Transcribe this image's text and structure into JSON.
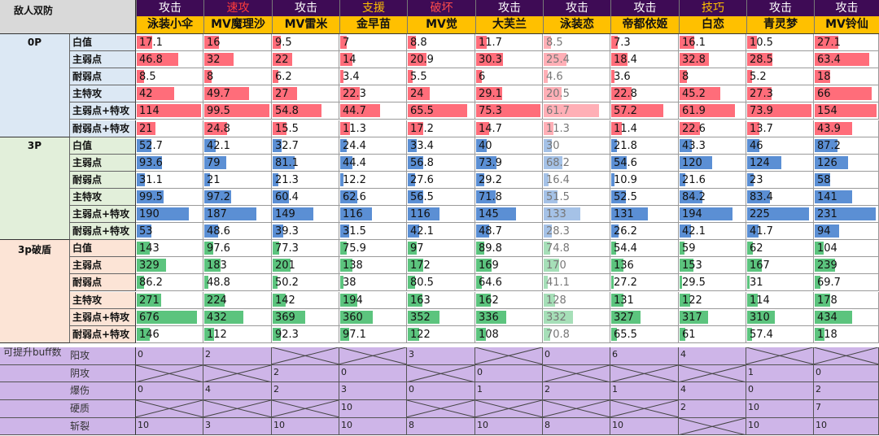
{
  "corner_label": "敌人双防",
  "roles": [
    {
      "label": "攻击",
      "color": "#ffffff"
    },
    {
      "label": "速攻",
      "color": "#ff3b3b"
    },
    {
      "label": "攻击",
      "color": "#ffffff"
    },
    {
      "label": "支援",
      "color": "#ffc000"
    },
    {
      "label": "破坏",
      "color": "#ff4c4c"
    },
    {
      "label": "攻击",
      "color": "#ffffff"
    },
    {
      "label": "攻击",
      "color": "#ffffff"
    },
    {
      "label": "攻击",
      "color": "#ffffff"
    },
    {
      "label": "技巧",
      "color": "#ffc000"
    },
    {
      "label": "攻击",
      "color": "#ffffff"
    },
    {
      "label": "攻击",
      "color": "#ffffff"
    }
  ],
  "characters": [
    "泳装小伞",
    "MV魔理沙",
    "MV雷米",
    "金早苗",
    "MV觉",
    "大芙兰",
    "泳装恋",
    "帝都依姬",
    "白恋",
    "青灵梦",
    "MV铃仙"
  ],
  "highlight": {
    "character_index": 6,
    "scale_max": {
      "0P": 72,
      "3P": 235,
      "3p破盾": 720
    }
  },
  "groups": [
    {
      "name": "0P",
      "bg": "#dce8f4",
      "bar_color": "#ff6d7a",
      "rows": [
        {
          "label": "白值",
          "values": [
            "17.1",
            "16",
            "9.5",
            "7",
            "8.8",
            "11.7",
            "8.5",
            "7.3",
            "16.1",
            "10.5",
            "27.1"
          ]
        },
        {
          "label": "主弱点",
          "values": [
            "46.8",
            "32",
            "22",
            "14",
            "20.9",
            "30.3",
            "25.4",
            "18.4",
            "32.8",
            "28.5",
            "63.4"
          ]
        },
        {
          "label": "耐弱点",
          "values": [
            "8.5",
            "8",
            "6.2",
            "3.4",
            "5.5",
            "6",
            "4.6",
            "3.6",
            "8",
            "5.2",
            "18"
          ]
        },
        {
          "label": "主特攻",
          "values": [
            "42",
            "49.7",
            "27",
            "22.3",
            "24",
            "29.1",
            "20.5",
            "22.8",
            "45.2",
            "27.3",
            "66"
          ]
        },
        {
          "label": "主弱点+特攻",
          "values": [
            "114",
            "99.5",
            "54.8",
            "44.7",
            "65.5",
            "75.3",
            "61.7",
            "57.2",
            "61.9",
            "73.9",
            "154"
          ]
        },
        {
          "label": "耐弱点+特攻",
          "values": [
            "21",
            "24.8",
            "15.5",
            "11.3",
            "17.2",
            "14.7",
            "11.3",
            "11.4",
            "22.6",
            "13.7",
            "43.9"
          ]
        }
      ]
    },
    {
      "name": "3P",
      "bg": "#e2efda",
      "bar_color": "#5b8fd4",
      "rows": [
        {
          "label": "白值",
          "values": [
            "52.7",
            "42.1",
            "32.7",
            "24.4",
            "33.4",
            "40",
            "30",
            "21.8",
            "43.3",
            "46",
            "87.2"
          ]
        },
        {
          "label": "主弱点",
          "values": [
            "93.6",
            "79",
            "81.1",
            "44.4",
            "56.8",
            "73.9",
            "68.2",
            "54.6",
            "120",
            "124",
            "126"
          ]
        },
        {
          "label": "耐弱点",
          "values": [
            "31.1",
            "21",
            "21.3",
            "12.2",
            "27.6",
            "29.2",
            "16.4",
            "10.9",
            "21.6",
            "23",
            "58"
          ]
        },
        {
          "label": "主特攻",
          "values": [
            "99.5",
            "97.2",
            "60.4",
            "62.6",
            "56.5",
            "71.8",
            "51.5",
            "52.5",
            "84.2",
            "83.4",
            "141"
          ]
        },
        {
          "label": "主弱点+特攻",
          "values": [
            "190",
            "187",
            "149",
            "116",
            "116",
            "145",
            "133",
            "131",
            "194",
            "225",
            "231"
          ]
        },
        {
          "label": "耐弱点+特攻",
          "values": [
            "53",
            "48.6",
            "39.3",
            "31.5",
            "42.1",
            "48.7",
            "28.3",
            "26.2",
            "42.1",
            "41.7",
            "94"
          ]
        }
      ]
    },
    {
      "name": "3p破盾",
      "bg": "#fce4d6",
      "bar_color": "#5cc47e",
      "rows": [
        {
          "label": "白值",
          "values": [
            "143",
            "97.6",
            "77.3",
            "75.9",
            "97",
            "89.8",
            "74.8",
            "54.4",
            "59",
            "62",
            "104"
          ]
        },
        {
          "label": "主弱点",
          "values": [
            "329",
            "183",
            "201",
            "138",
            "172",
            "169",
            "170",
            "136",
            "153",
            "167",
            "239"
          ]
        },
        {
          "label": "耐弱点",
          "values": [
            "86.2",
            "48.8",
            "50.2",
            "38",
            "80.5",
            "64.6",
            "41.1",
            "27.2",
            "29.5",
            "31",
            "69.7"
          ]
        },
        {
          "label": "主特攻",
          "values": [
            "271",
            "224",
            "142",
            "194",
            "163",
            "162",
            "128",
            "131",
            "122",
            "114",
            "178"
          ]
        },
        {
          "label": "主弱点+特攻",
          "values": [
            "676",
            "432",
            "369",
            "360",
            "352",
            "336",
            "332",
            "327",
            "317",
            "310",
            "434"
          ]
        },
        {
          "label": "耐弱点+特攻",
          "values": [
            "146",
            "112",
            "92.3",
            "97.1",
            "122",
            "108",
            "70.8",
            "65.5",
            "61",
            "57.4",
            "118"
          ]
        }
      ]
    }
  ],
  "buff_section": {
    "title": "可提升buff数",
    "rows": [
      {
        "label": "阳攻",
        "values": [
          "0",
          "2",
          "",
          "",
          "3",
          "",
          "0",
          "6",
          "4",
          "",
          ""
        ]
      },
      {
        "label": "阴攻",
        "values": [
          "",
          "",
          "2",
          "0",
          "",
          "0",
          "",
          "",
          "",
          "1",
          "0"
        ]
      },
      {
        "label": "爆伤",
        "values": [
          "0",
          "4",
          "2",
          "3",
          "0",
          "1",
          "2",
          "1",
          "4",
          "0",
          "2"
        ]
      },
      {
        "label": "硬质",
        "values": [
          "",
          "",
          "",
          "10",
          "",
          "",
          "",
          "",
          "2",
          "10",
          "7"
        ]
      },
      {
        "label": "斩裂",
        "values": [
          "10",
          "3",
          "10",
          "10",
          "8",
          "10",
          "8",
          "10",
          "",
          "10",
          "10"
        ]
      }
    ]
  }
}
